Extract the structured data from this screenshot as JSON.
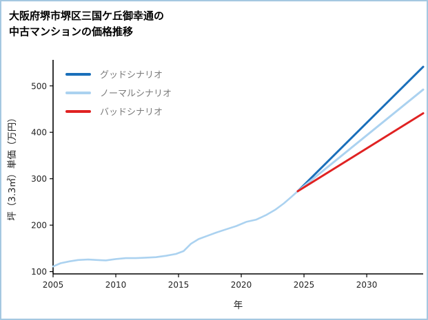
{
  "header": {
    "title_line1": "大阪府堺市堺区三国ケ丘御幸通の",
    "title_line2": "中古マンションの価格推移"
  },
  "chart_data": {
    "type": "line",
    "title": "大阪府堺市堺区三国ケ丘御幸通の中古マンションの価格推移",
    "xlabel": "年",
    "ylabel": "坪（3.3㎡）単価（万円）",
    "xlim": [
      2005,
      2034.5
    ],
    "ylim": [
      95,
      556
    ],
    "xticks": [
      2005,
      2010,
      2015,
      2020,
      2025,
      2030
    ],
    "yticks": [
      100,
      200,
      300,
      400,
      500
    ],
    "grid": false,
    "legend_position": "upper-left",
    "axis_color": "#000000",
    "history": {
      "color": "#abd2f0",
      "x": [
        2005,
        2005.6,
        2006.3,
        2007,
        2007.8,
        2008.5,
        2009.2,
        2010,
        2010.8,
        2011.6,
        2012.4,
        2013.2,
        2014,
        2014.8,
        2015.4,
        2016,
        2016.6,
        2017.3,
        2018,
        2018.8,
        2019.6,
        2020.4,
        2021.2,
        2022,
        2022.7,
        2023.4,
        2024,
        2024.5
      ],
      "y": [
        111,
        118,
        122,
        125,
        126,
        125,
        124,
        127,
        129,
        129,
        130,
        131,
        134,
        138,
        144,
        160,
        170,
        177,
        184,
        191,
        198,
        207,
        212,
        222,
        233,
        247,
        261,
        273
      ]
    },
    "series": [
      {
        "name": "グッドシナリオ",
        "color": "#1a6fba",
        "x": [
          2024.5,
          2034.5
        ],
        "y": [
          273,
          541
        ]
      },
      {
        "name": "ノーマルシナリオ",
        "color": "#abd2f0",
        "x": [
          2024.5,
          2034.5
        ],
        "y": [
          273,
          492
        ]
      },
      {
        "name": "バッドシナリオ",
        "color": "#e02222",
        "x": [
          2024.5,
          2034.5
        ],
        "y": [
          273,
          441
        ]
      }
    ]
  }
}
